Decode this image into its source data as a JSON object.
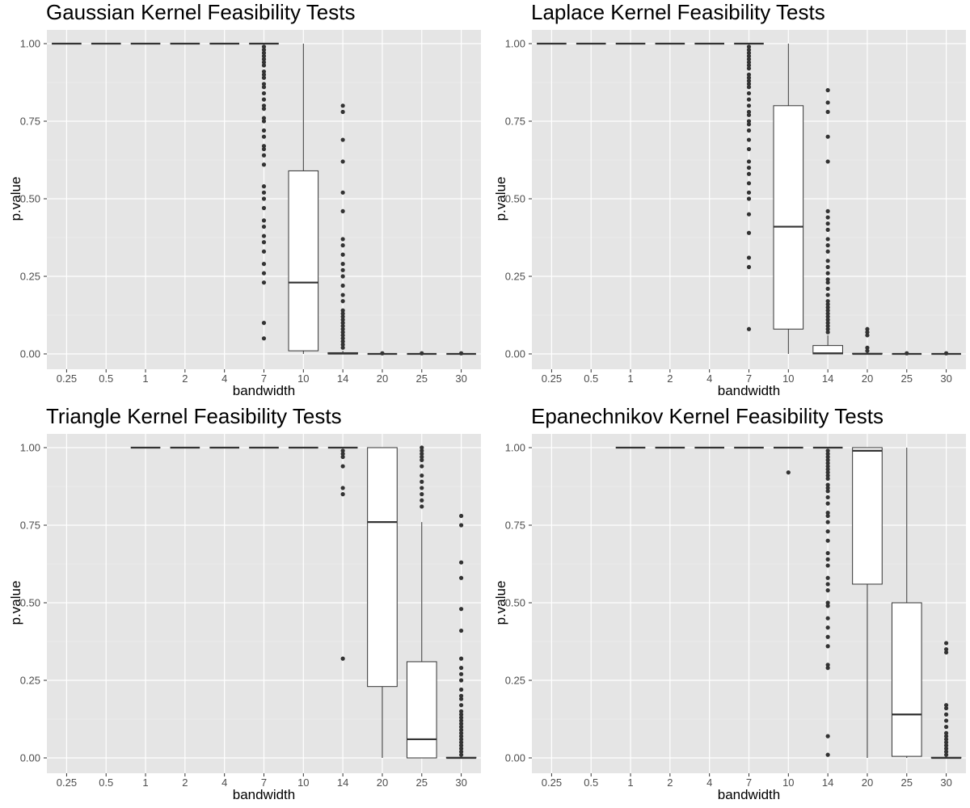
{
  "common": {
    "xlabel": "bandwidth",
    "ylabel": "p.value",
    "categories": [
      "0.25",
      "0.5",
      "1",
      "2",
      "4",
      "7",
      "10",
      "14",
      "20",
      "25",
      "30"
    ],
    "yticks": [
      "0.00",
      "0.25",
      "0.50",
      "0.75",
      "1.00"
    ],
    "ylim": [
      -0.05,
      1.05
    ]
  },
  "chart_data": [
    {
      "type": "boxplot",
      "title": "Gaussian Kernel Feasibility Tests",
      "xlabel": "bandwidth",
      "ylabel": "p.value",
      "categories": [
        "0.25",
        "0.5",
        "1",
        "2",
        "4",
        "7",
        "10",
        "14",
        "20",
        "25",
        "30"
      ],
      "ylim": [
        -0.05,
        1.05
      ],
      "boxes": [
        {
          "x": "0.25",
          "min": 1,
          "q1": 1,
          "median": 1,
          "q3": 1,
          "max": 1,
          "outliers": []
        },
        {
          "x": "0.5",
          "min": 1,
          "q1": 1,
          "median": 1,
          "q3": 1,
          "max": 1,
          "outliers": []
        },
        {
          "x": "1",
          "min": 1,
          "q1": 1,
          "median": 1,
          "q3": 1,
          "max": 1,
          "outliers": []
        },
        {
          "x": "2",
          "min": 1,
          "q1": 1,
          "median": 1,
          "q3": 1,
          "max": 1,
          "outliers": []
        },
        {
          "x": "4",
          "min": 1,
          "q1": 1,
          "median": 1,
          "q3": 1,
          "max": 1,
          "outliers": []
        },
        {
          "x": "7",
          "min": 1,
          "q1": 1,
          "median": 1,
          "q3": 1,
          "max": 1,
          "outliers": [
            0.05,
            0.1,
            0.23,
            0.26,
            0.29,
            0.33,
            0.36,
            0.38,
            0.41,
            0.43,
            0.47,
            0.5,
            0.52,
            0.54,
            0.61,
            0.64,
            0.66,
            0.67,
            0.7,
            0.72,
            0.75,
            0.76,
            0.79,
            0.8,
            0.82,
            0.84,
            0.86,
            0.87,
            0.89,
            0.9,
            0.91,
            0.93,
            0.94,
            0.95,
            0.96,
            0.97,
            0.98,
            0.99
          ]
        },
        {
          "x": "10",
          "min": 0,
          "q1": 0.01,
          "median": 0.23,
          "q3": 0.59,
          "max": 1,
          "outliers": []
        },
        {
          "x": "14",
          "min": 0,
          "q1": 0,
          "median": 0.001,
          "q3": 0.004,
          "max": 0.01,
          "outliers": [
            0.02,
            0.03,
            0.04,
            0.05,
            0.06,
            0.07,
            0.08,
            0.09,
            0.1,
            0.11,
            0.12,
            0.13,
            0.14,
            0.17,
            0.19,
            0.22,
            0.25,
            0.27,
            0.29,
            0.32,
            0.35,
            0.37,
            0.46,
            0.52,
            0.62,
            0.69,
            0.78,
            0.8
          ]
        },
        {
          "x": "20",
          "min": 0,
          "q1": 0,
          "median": 0,
          "q3": 0,
          "max": 0,
          "outliers": [
            0.002
          ]
        },
        {
          "x": "25",
          "min": 0,
          "q1": 0,
          "median": 0,
          "q3": 0,
          "max": 0,
          "outliers": [
            0.002
          ]
        },
        {
          "x": "30",
          "min": 0,
          "q1": 0,
          "median": 0,
          "q3": 0,
          "max": 0,
          "outliers": [
            0.002
          ]
        }
      ]
    },
    {
      "type": "boxplot",
      "title": "Laplace Kernel Feasibility Tests",
      "xlabel": "bandwidth",
      "ylabel": "p.value",
      "categories": [
        "0.25",
        "0.5",
        "1",
        "2",
        "4",
        "7",
        "10",
        "14",
        "20",
        "25",
        "30"
      ],
      "ylim": [
        -0.05,
        1.05
      ],
      "boxes": [
        {
          "x": "0.25",
          "min": 1,
          "q1": 1,
          "median": 1,
          "q3": 1,
          "max": 1,
          "outliers": []
        },
        {
          "x": "0.5",
          "min": 1,
          "q1": 1,
          "median": 1,
          "q3": 1,
          "max": 1,
          "outliers": []
        },
        {
          "x": "1",
          "min": 1,
          "q1": 1,
          "median": 1,
          "q3": 1,
          "max": 1,
          "outliers": []
        },
        {
          "x": "2",
          "min": 1,
          "q1": 1,
          "median": 1,
          "q3": 1,
          "max": 1,
          "outliers": []
        },
        {
          "x": "4",
          "min": 1,
          "q1": 1,
          "median": 1,
          "q3": 1,
          "max": 1,
          "outliers": []
        },
        {
          "x": "7",
          "min": 1,
          "q1": 1,
          "median": 1,
          "q3": 1,
          "max": 1,
          "outliers": [
            0.08,
            0.28,
            0.31,
            0.39,
            0.45,
            0.5,
            0.52,
            0.55,
            0.58,
            0.6,
            0.62,
            0.66,
            0.69,
            0.72,
            0.74,
            0.75,
            0.77,
            0.78,
            0.8,
            0.82,
            0.84,
            0.86,
            0.87,
            0.88,
            0.89,
            0.9,
            0.92,
            0.93,
            0.94,
            0.95,
            0.96,
            0.97,
            0.98,
            0.99
          ]
        },
        {
          "x": "10",
          "min": 0,
          "q1": 0.08,
          "median": 0.41,
          "q3": 0.8,
          "max": 1,
          "outliers": []
        },
        {
          "x": "14",
          "min": 0,
          "q1": 0,
          "median": 0.002,
          "q3": 0.027,
          "max": 0.06,
          "outliers": [
            0.07,
            0.08,
            0.09,
            0.1,
            0.11,
            0.12,
            0.13,
            0.14,
            0.15,
            0.16,
            0.17,
            0.19,
            0.21,
            0.23,
            0.24,
            0.26,
            0.28,
            0.3,
            0.33,
            0.35,
            0.37,
            0.4,
            0.42,
            0.44,
            0.46,
            0.62,
            0.7,
            0.78,
            0.81,
            0.85
          ]
        },
        {
          "x": "20",
          "min": 0,
          "q1": 0,
          "median": 0,
          "q3": 0.002,
          "max": 0.005,
          "outliers": [
            0.01,
            0.02,
            0.06,
            0.07,
            0.08
          ]
        },
        {
          "x": "25",
          "min": 0,
          "q1": 0,
          "median": 0,
          "q3": 0,
          "max": 0,
          "outliers": [
            0.002
          ]
        },
        {
          "x": "30",
          "min": 0,
          "q1": 0,
          "median": 0,
          "q3": 0,
          "max": 0,
          "outliers": [
            0.002
          ]
        }
      ]
    },
    {
      "type": "boxplot",
      "title": "Triangle Kernel Feasibility Tests",
      "xlabel": "bandwidth",
      "ylabel": "p.value",
      "categories": [
        "0.25",
        "0.5",
        "1",
        "2",
        "4",
        "7",
        "10",
        "14",
        "20",
        "25",
        "30"
      ],
      "ylim": [
        -0.05,
        1.05
      ],
      "boxes": [
        {
          "x": "1",
          "min": 1,
          "q1": 1,
          "median": 1,
          "q3": 1,
          "max": 1,
          "outliers": []
        },
        {
          "x": "2",
          "min": 1,
          "q1": 1,
          "median": 1,
          "q3": 1,
          "max": 1,
          "outliers": []
        },
        {
          "x": "4",
          "min": 1,
          "q1": 1,
          "median": 1,
          "q3": 1,
          "max": 1,
          "outliers": []
        },
        {
          "x": "7",
          "min": 1,
          "q1": 1,
          "median": 1,
          "q3": 1,
          "max": 1,
          "outliers": []
        },
        {
          "x": "10",
          "min": 1,
          "q1": 1,
          "median": 1,
          "q3": 1,
          "max": 1,
          "outliers": []
        },
        {
          "x": "14",
          "min": 1,
          "q1": 1,
          "median": 1,
          "q3": 1,
          "max": 1,
          "outliers": [
            0.32,
            0.85,
            0.87,
            0.94,
            0.97,
            0.98,
            0.99
          ]
        },
        {
          "x": "20",
          "min": 0,
          "q1": 0.23,
          "median": 0.76,
          "q3": 1,
          "max": 1,
          "outliers": []
        },
        {
          "x": "25",
          "min": 0,
          "q1": 0,
          "median": 0.06,
          "q3": 0.31,
          "max": 0.76,
          "outliers": [
            0.81,
            0.83,
            0.85,
            0.87,
            0.89,
            0.91,
            0.94,
            0.96,
            0.97,
            0.98,
            0.99,
            1
          ]
        },
        {
          "x": "30",
          "min": 0,
          "q1": 0,
          "median": 0,
          "q3": 0.002,
          "max": 0.005,
          "outliers": [
            0.01,
            0.02,
            0.03,
            0.04,
            0.05,
            0.06,
            0.07,
            0.08,
            0.09,
            0.1,
            0.11,
            0.12,
            0.13,
            0.14,
            0.15,
            0.17,
            0.19,
            0.2,
            0.22,
            0.25,
            0.27,
            0.29,
            0.32,
            0.41,
            0.48,
            0.58,
            0.63,
            0.75,
            0.78
          ]
        }
      ]
    },
    {
      "type": "boxplot",
      "title": "Epanechnikov Kernel Feasibility Tests",
      "xlabel": "bandwidth",
      "ylabel": "p.value",
      "categories": [
        "0.25",
        "0.5",
        "1",
        "2",
        "4",
        "7",
        "10",
        "14",
        "20",
        "25",
        "30"
      ],
      "ylim": [
        -0.05,
        1.05
      ],
      "boxes": [
        {
          "x": "1",
          "min": 1,
          "q1": 1,
          "median": 1,
          "q3": 1,
          "max": 1,
          "outliers": []
        },
        {
          "x": "2",
          "min": 1,
          "q1": 1,
          "median": 1,
          "q3": 1,
          "max": 1,
          "outliers": []
        },
        {
          "x": "4",
          "min": 1,
          "q1": 1,
          "median": 1,
          "q3": 1,
          "max": 1,
          "outliers": []
        },
        {
          "x": "7",
          "min": 1,
          "q1": 1,
          "median": 1,
          "q3": 1,
          "max": 1,
          "outliers": []
        },
        {
          "x": "10",
          "min": 1,
          "q1": 1,
          "median": 1,
          "q3": 1,
          "max": 1,
          "outliers": [
            0.92
          ]
        },
        {
          "x": "14",
          "min": 1,
          "q1": 1,
          "median": 1,
          "q3": 1,
          "max": 1,
          "outliers": [
            0.01,
            0.07,
            0.29,
            0.3,
            0.36,
            0.39,
            0.42,
            0.45,
            0.49,
            0.5,
            0.54,
            0.56,
            0.58,
            0.62,
            0.64,
            0.66,
            0.7,
            0.73,
            0.76,
            0.78,
            0.79,
            0.82,
            0.84,
            0.86,
            0.87,
            0.88,
            0.9,
            0.91,
            0.92,
            0.93,
            0.94,
            0.95,
            0.96,
            0.97,
            0.98,
            0.99
          ]
        },
        {
          "x": "20",
          "min": 0,
          "q1": 0.56,
          "median": 0.99,
          "q3": 1,
          "max": 1,
          "outliers": []
        },
        {
          "x": "25",
          "min": 0,
          "q1": 0.005,
          "median": 0.14,
          "q3": 0.5,
          "max": 1,
          "outliers": []
        },
        {
          "x": "30",
          "min": 0,
          "q1": 0,
          "median": 0,
          "q3": 0.002,
          "max": 0.005,
          "outliers": [
            0.01,
            0.02,
            0.03,
            0.04,
            0.05,
            0.06,
            0.07,
            0.08,
            0.1,
            0.12,
            0.14,
            0.16,
            0.17,
            0.34,
            0.35,
            0.37
          ]
        }
      ]
    }
  ]
}
